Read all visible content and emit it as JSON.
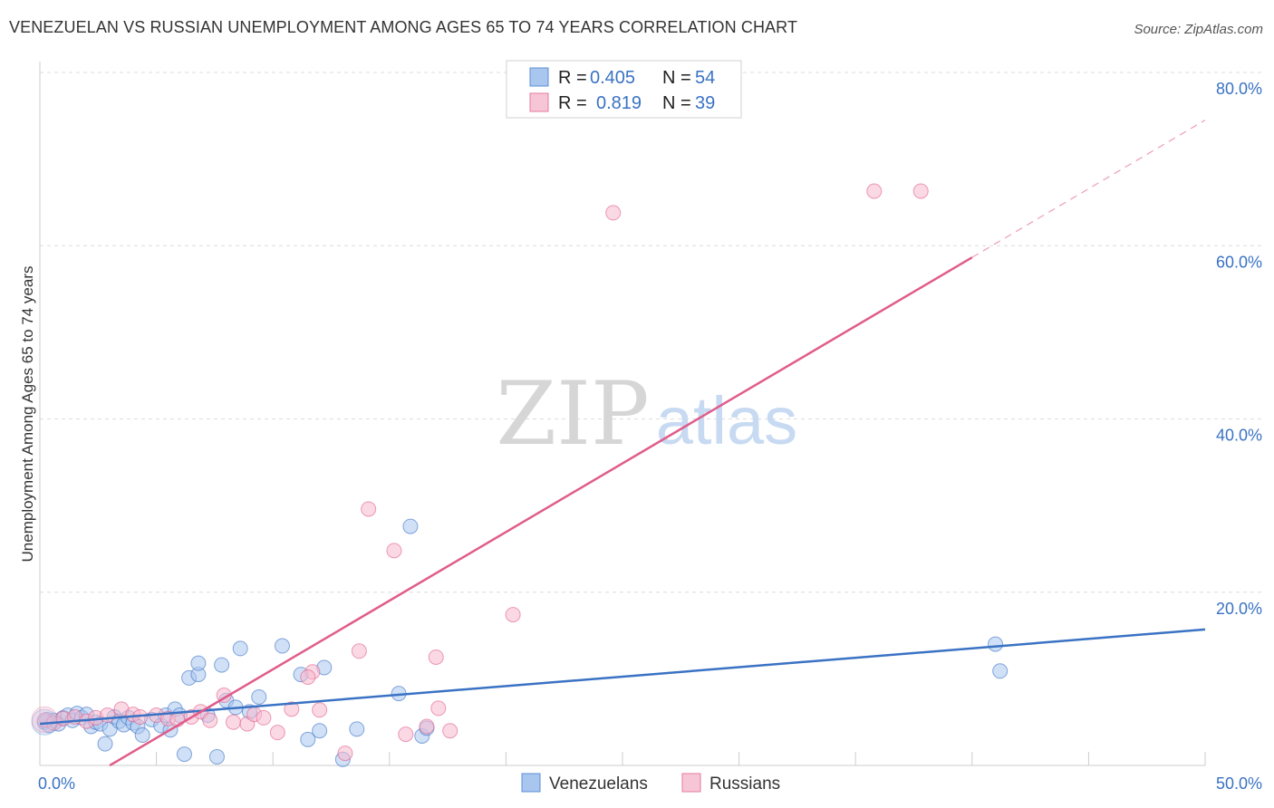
{
  "title": "VENEZUELAN VS RUSSIAN UNEMPLOYMENT AMONG AGES 65 TO 74 YEARS CORRELATION CHART",
  "source": "Source: ZipAtlas.com",
  "watermark": {
    "zip": "ZIP",
    "atlas": "atlas"
  },
  "legend_box": [
    {
      "r_label": "R =",
      "r_value": "0.405",
      "n_label": "N =",
      "n_value": "54",
      "color": "#5b8fd6",
      "fill": "#a9c6ee"
    },
    {
      "r_label": "R =",
      "r_value": "0.819",
      "n_label": "N =",
      "n_value": "39",
      "color": "#e57a9e",
      "fill": "#f7b9cd"
    }
  ],
  "bottom_legend": [
    "Venezuelans",
    "Russians"
  ],
  "chart_data": {
    "type": "scatter",
    "title": "VENEZUELAN VS RUSSIAN UNEMPLOYMENT AMONG AGES 65 TO 74 YEARS CORRELATION CHART",
    "xlabel": "",
    "ylabel": "Unemployment Among Ages 65 to 74 years",
    "xlim": [
      0,
      50
    ],
    "ylim": [
      0,
      80
    ],
    "x_tick_labels": [
      "0.0%",
      "50.0%"
    ],
    "y_tick_labels": [
      "80.0%",
      "60.0%",
      "40.0%",
      "20.0%"
    ],
    "y_ticks": [
      80,
      60,
      40,
      20
    ],
    "series": [
      {
        "name": "Venezuelans",
        "color": "#3a72c4",
        "fill": "#a9c6ee",
        "r": 0.405,
        "n": 54,
        "trend": {
          "x0": 0,
          "y0": 4.8,
          "x1": 50,
          "y1": 15.7,
          "dashed_from": null
        },
        "points": [
          [
            0.2,
            5.0
          ],
          [
            0.4,
            4.6
          ],
          [
            0.6,
            5.2
          ],
          [
            0.8,
            4.8
          ],
          [
            1.0,
            5.5
          ],
          [
            1.2,
            5.8
          ],
          [
            1.4,
            5.2
          ],
          [
            1.6,
            6.0
          ],
          [
            1.8,
            5.5
          ],
          [
            2.0,
            5.9
          ],
          [
            2.2,
            4.5
          ],
          [
            2.4,
            5.0
          ],
          [
            2.6,
            4.8
          ],
          [
            2.8,
            2.5
          ],
          [
            3.0,
            4.2
          ],
          [
            3.2,
            5.6
          ],
          [
            3.4,
            5.1
          ],
          [
            3.6,
            4.7
          ],
          [
            3.8,
            5.5
          ],
          [
            4.0,
            4.9
          ],
          [
            4.2,
            4.5
          ],
          [
            4.4,
            3.5
          ],
          [
            4.8,
            5.3
          ],
          [
            5.2,
            4.6
          ],
          [
            5.4,
            5.8
          ],
          [
            5.6,
            4.1
          ],
          [
            5.8,
            6.5
          ],
          [
            6.0,
            5.8
          ],
          [
            6.2,
            1.3
          ],
          [
            6.4,
            10.1
          ],
          [
            6.8,
            10.5
          ],
          [
            6.8,
            11.8
          ],
          [
            7.2,
            5.8
          ],
          [
            7.6,
            1.0
          ],
          [
            7.8,
            11.6
          ],
          [
            8.0,
            7.5
          ],
          [
            8.4,
            6.7
          ],
          [
            8.6,
            13.5
          ],
          [
            9.0,
            6.2
          ],
          [
            9.4,
            7.9
          ],
          [
            10.4,
            13.8
          ],
          [
            11.2,
            10.5
          ],
          [
            11.5,
            3.0
          ],
          [
            12.0,
            4.0
          ],
          [
            12.2,
            11.3
          ],
          [
            13.0,
            0.7
          ],
          [
            13.6,
            4.2
          ],
          [
            15.4,
            8.3
          ],
          [
            15.9,
            27.6
          ],
          [
            16.4,
            3.4
          ],
          [
            16.6,
            4.3
          ],
          [
            41.0,
            14.0
          ],
          [
            41.2,
            10.9
          ],
          [
            0.3,
            5.3
          ]
        ]
      },
      {
        "name": "Russians",
        "color": "#e05c8a",
        "fill": "#f7b9cd",
        "r": 0.819,
        "n": 39,
        "trend": {
          "x0": 3.0,
          "y0": 0,
          "x1": 50,
          "y1": 74.5,
          "dashed_from": 40.0
        },
        "points": [
          [
            0.2,
            5.2
          ],
          [
            0.6,
            4.9
          ],
          [
            1.0,
            5.4
          ],
          [
            1.5,
            5.6
          ],
          [
            2.0,
            5.1
          ],
          [
            2.4,
            5.5
          ],
          [
            2.9,
            5.8
          ],
          [
            3.5,
            6.5
          ],
          [
            4.0,
            5.9
          ],
          [
            4.3,
            5.6
          ],
          [
            5.0,
            5.8
          ],
          [
            5.5,
            5.4
          ],
          [
            5.9,
            5.3
          ],
          [
            6.5,
            5.6
          ],
          [
            6.9,
            6.2
          ],
          [
            7.3,
            5.2
          ],
          [
            7.9,
            8.1
          ],
          [
            8.3,
            5.0
          ],
          [
            8.9,
            4.8
          ],
          [
            9.2,
            5.9
          ],
          [
            9.6,
            5.5
          ],
          [
            10.2,
            3.8
          ],
          [
            10.8,
            6.5
          ],
          [
            11.7,
            10.8
          ],
          [
            11.5,
            10.2
          ],
          [
            12.0,
            6.4
          ],
          [
            13.1,
            1.4
          ],
          [
            13.7,
            13.2
          ],
          [
            14.1,
            29.6
          ],
          [
            15.2,
            24.8
          ],
          [
            15.7,
            3.6
          ],
          [
            17.0,
            12.5
          ],
          [
            17.1,
            6.6
          ],
          [
            17.6,
            4.0
          ],
          [
            20.3,
            17.4
          ],
          [
            24.6,
            63.8
          ],
          [
            35.8,
            66.3
          ],
          [
            37.8,
            66.3
          ],
          [
            16.6,
            4.5
          ]
        ]
      }
    ]
  }
}
